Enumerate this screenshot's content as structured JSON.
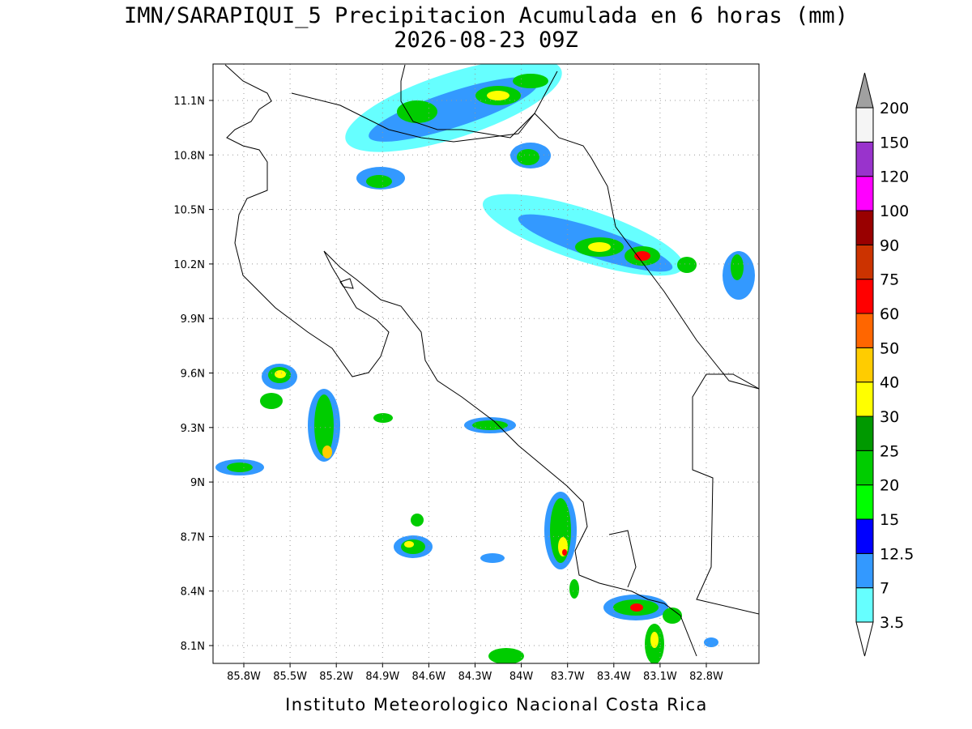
{
  "title": "IMN/SARAPIQUI_5 Precipitacion Acumulada en 6 horas (mm)",
  "subtitle": "2026-08-23 09Z",
  "map": {
    "lat_labels": [
      "11.1N",
      "10.8N",
      "10.5N",
      "10.2N",
      "9.9N",
      "9.6N",
      "9.3N",
      "9N",
      "8.7N",
      "8.4N",
      "8.1N"
    ],
    "lon_labels": [
      "85.8W",
      "85.5W",
      "85.2W",
      "84.9W",
      "84.6W",
      "84.3W",
      "84W",
      "83.7W",
      "83.4W",
      "83.1W",
      "82.8W"
    ]
  },
  "colorbar": {
    "levels": [
      3.5,
      7,
      12.5,
      15,
      20,
      25,
      30,
      40,
      50,
      60,
      75,
      90,
      100,
      120,
      150,
      200
    ],
    "colors": [
      "#66ffff",
      "#3399ff",
      "#0000ff",
      "#00ff00",
      "#00cc00",
      "#009900",
      "#ffff00",
      "#ffcc00",
      "#ff6600",
      "#ff0000",
      "#cc3300",
      "#990000",
      "#ff00ff",
      "#9933cc",
      "#f5f5f5"
    ],
    "below_color": "#ffffff",
    "above_color": "#a0a0a0"
  },
  "credit": "Instituto Meteorologico Nacional Costa Rica"
}
